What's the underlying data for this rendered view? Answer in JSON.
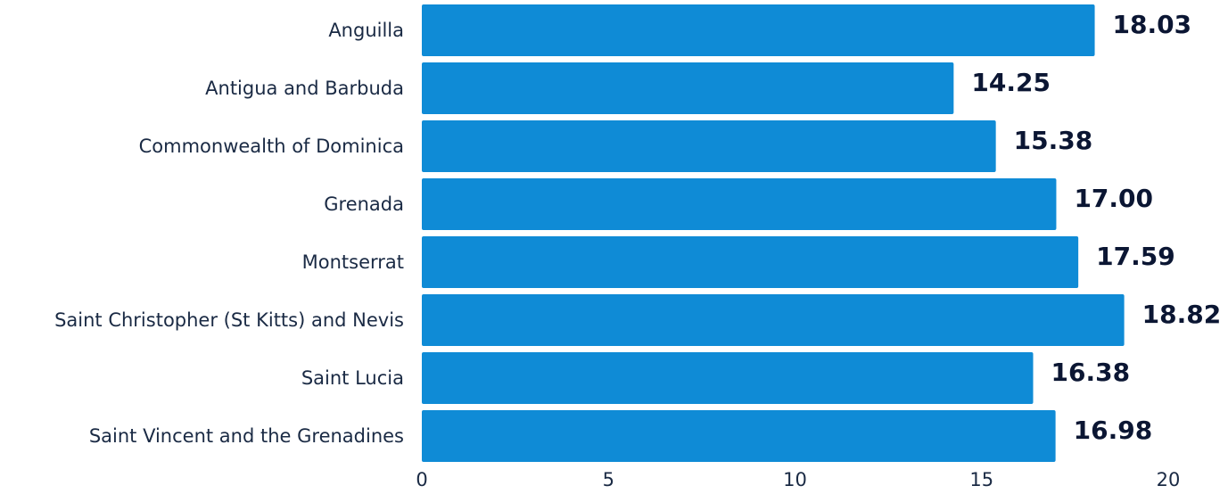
{
  "chart_data": {
    "type": "bar",
    "orientation": "horizontal",
    "categories": [
      "Anguilla",
      "Antigua and Barbuda",
      "Commonwealth of Dominica",
      "Grenada",
      "Montserrat",
      "Saint Christopher (St Kitts) and Nevis",
      "Saint Lucia",
      "Saint Vincent and the Grenadines"
    ],
    "values": [
      18.03,
      14.25,
      15.38,
      17.0,
      17.59,
      18.82,
      16.38,
      16.98
    ],
    "value_labels": [
      "18.03",
      "14.25",
      "15.38",
      "17.00",
      "17.59",
      "18.82",
      "16.38",
      "16.98"
    ],
    "xlim": [
      0,
      20
    ],
    "xticks": [
      0,
      5,
      10,
      15,
      20
    ],
    "xtick_labels": [
      "0",
      "5",
      "10",
      "15",
      "20"
    ],
    "grid": false,
    "bar_color": "#0f8bd6"
  }
}
